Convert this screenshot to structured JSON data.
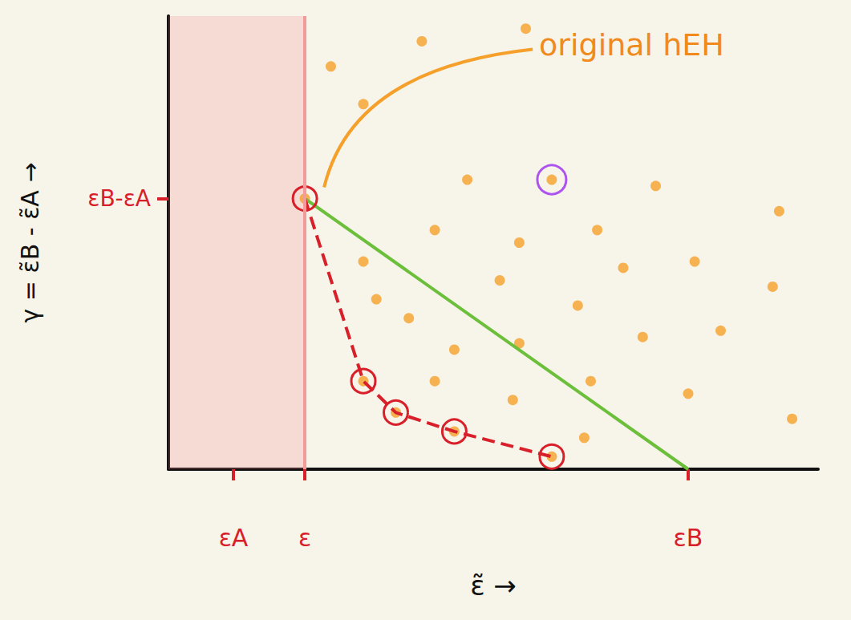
{
  "chart_data": {
    "type": "scatter",
    "x_label": "ε̃ →",
    "y_label": "γ = ε̃B - ε̃A →",
    "xlim": [
      0,
      100
    ],
    "ylim": [
      0,
      72
    ],
    "xticks": [
      {
        "value": 10,
        "label": "εA"
      },
      {
        "value": 21,
        "label": "ε"
      },
      {
        "value": 80,
        "label": "εB"
      }
    ],
    "yticks": [
      {
        "value": 43,
        "label": "εB-εA"
      }
    ],
    "grid": false,
    "vline": 21,
    "shaded_region": [
      0,
      21
    ],
    "annotation": {
      "text": "original hEH",
      "x": 21,
      "y": 43
    },
    "series": [
      {
        "type": "scatter",
        "color": "#f5a02a",
        "marker": "circle",
        "x": [
          55,
          39,
          25,
          30,
          46,
          59,
          75,
          94,
          41,
          54,
          66,
          81,
          70,
          93,
          30,
          51,
          63,
          73,
          85,
          37,
          32,
          44,
          54,
          65,
          53,
          41,
          80,
          96,
          64,
          21,
          30,
          35,
          44,
          59
        ],
        "y": [
          70,
          68,
          64,
          58,
          46,
          46,
          45,
          41,
          38,
          36,
          38,
          33,
          32,
          29,
          33,
          30,
          26,
          21,
          22,
          24,
          27,
          19,
          20,
          14,
          11,
          14,
          12,
          8,
          5,
          43,
          14,
          9,
          6,
          2
        ]
      },
      {
        "type": "line",
        "color": "#6cbf3a",
        "line_style": "solid",
        "marker": "none",
        "x": [
          21,
          80
        ],
        "y": [
          43,
          0
        ]
      },
      {
        "type": "line",
        "color": "#d8202a",
        "line_style": "dashed",
        "marker": "open_circle",
        "x": [
          21,
          30,
          35,
          44,
          59
        ],
        "y": [
          43,
          14,
          9,
          6,
          2
        ]
      },
      {
        "type": "scatter",
        "color": "#9a2cf0",
        "marker": "open_circle",
        "x": [
          59
        ],
        "y": [
          46
        ]
      }
    ]
  }
}
